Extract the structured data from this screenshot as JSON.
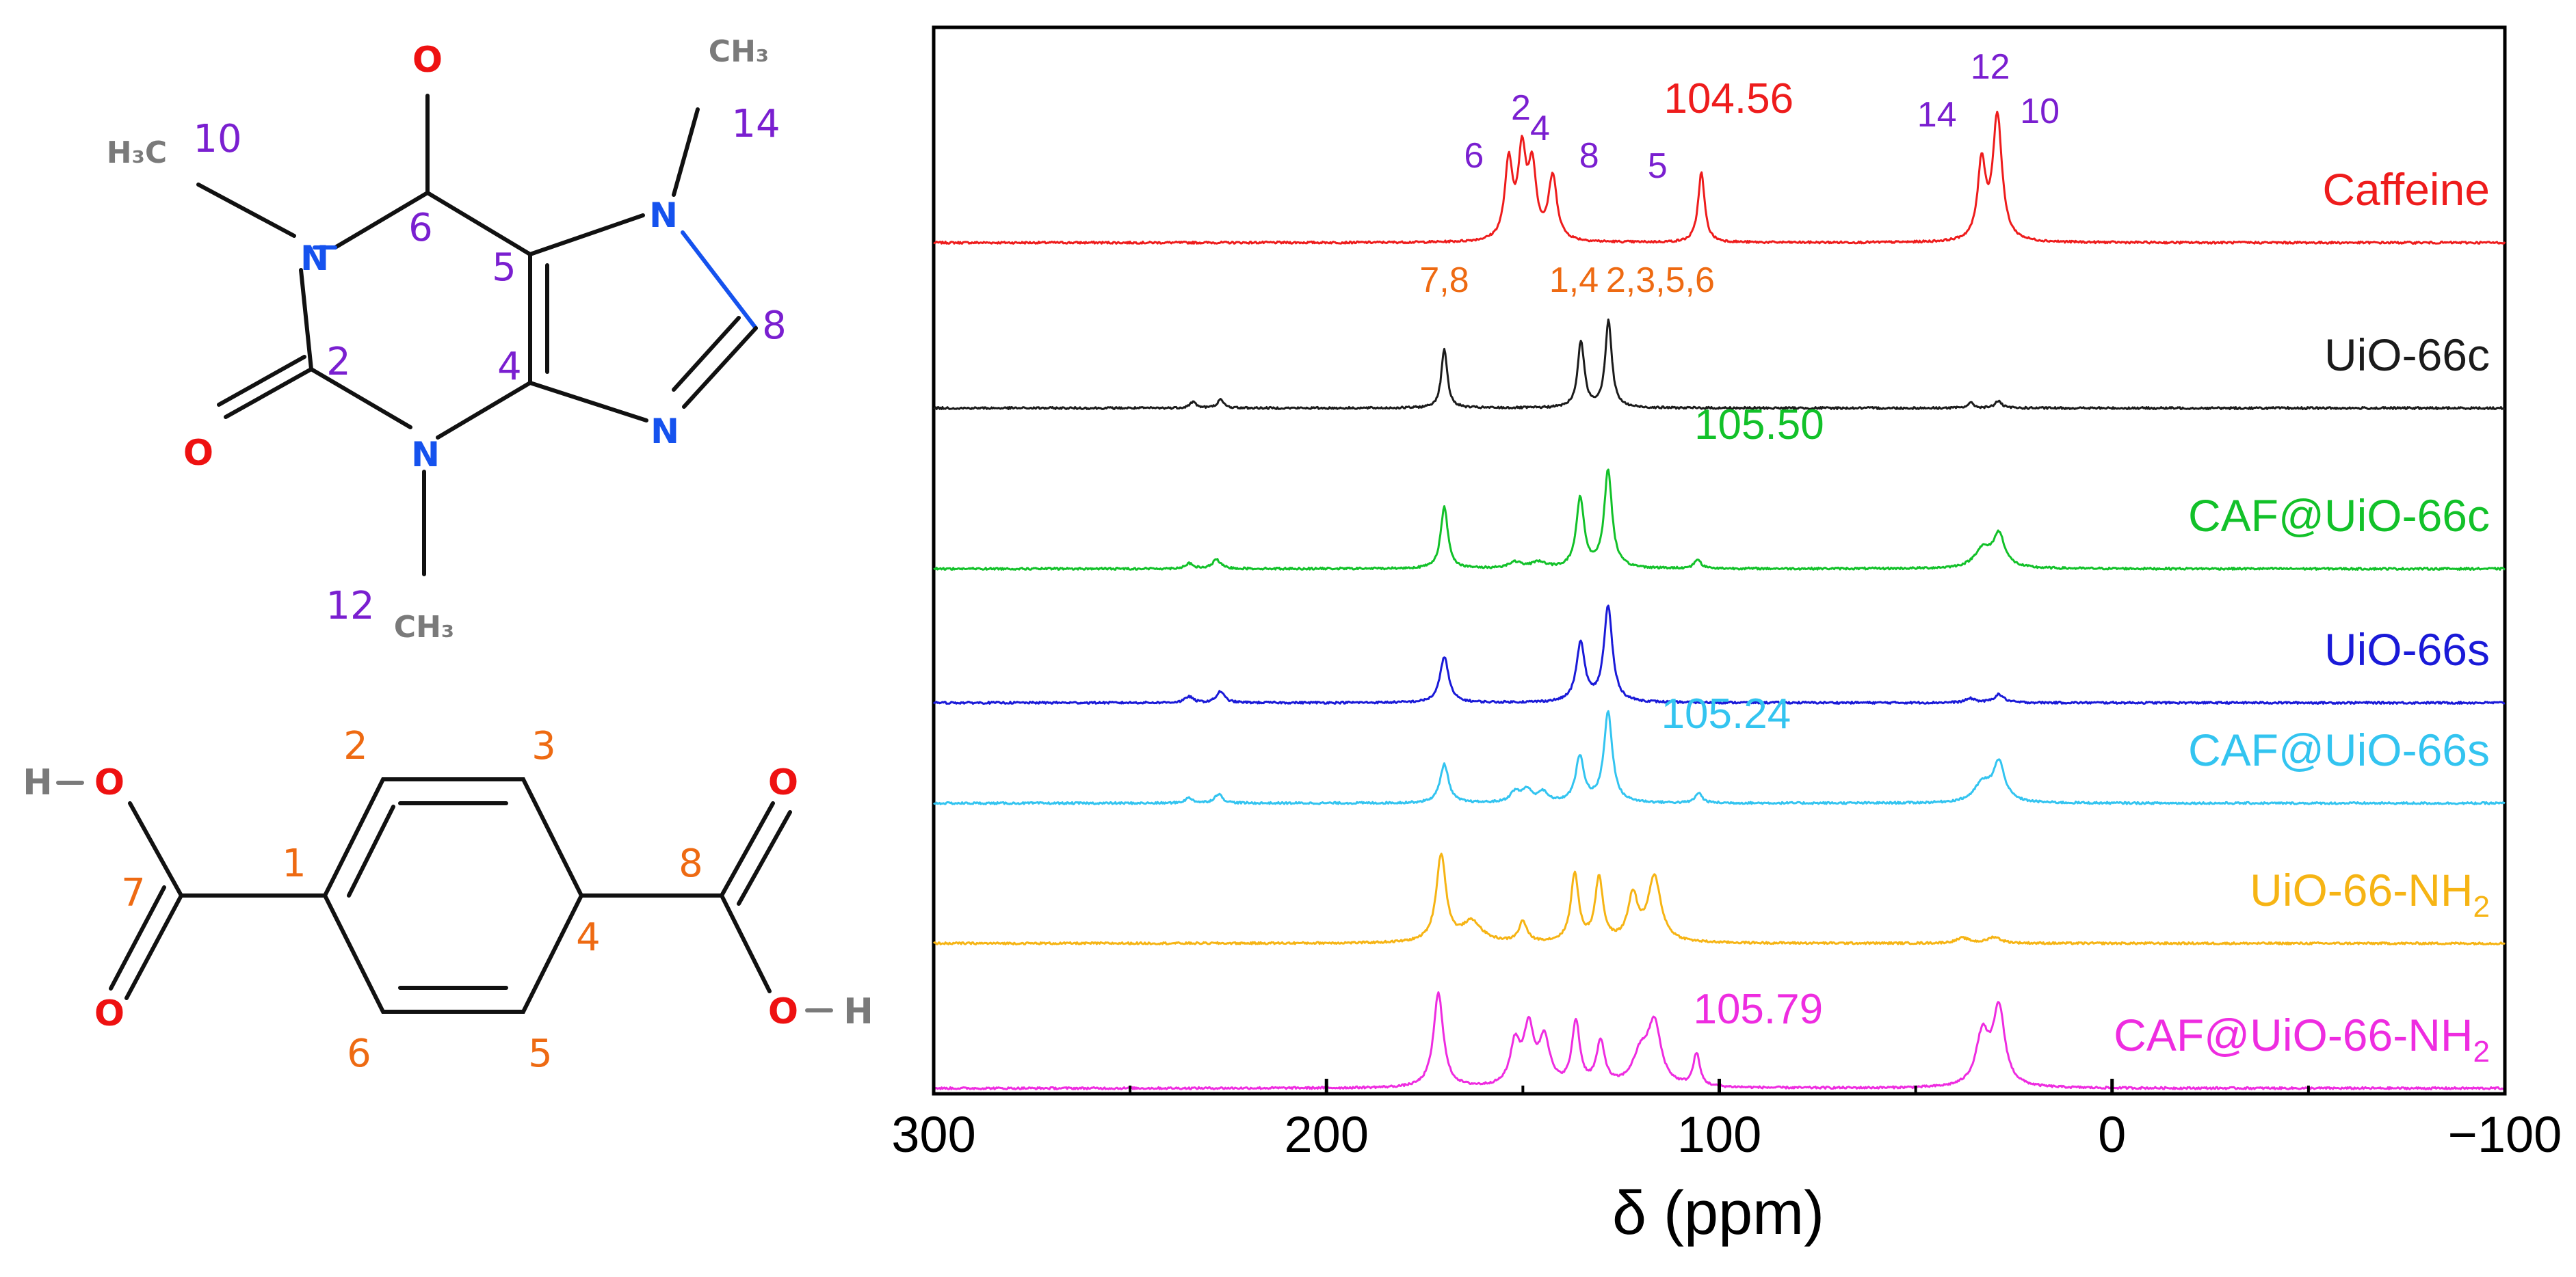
{
  "colors": {
    "oxygen": "#ee1111",
    "nitrogen": "#1552ee",
    "carbon_grey": "#7a7a7a",
    "caffeine_index": "#7a1fd0",
    "bdc_index": "#ee6a12",
    "bond": "#111111"
  },
  "caffeine_molecule": {
    "atoms": {
      "o6": "O",
      "o2": "O",
      "n1": "N",
      "n3": "N",
      "n7": "N",
      "n9": "N",
      "ch3_10": "H₃C",
      "ch3_12": "CH₃",
      "ch3_14": "CH₃"
    },
    "positions": {
      "p10": "10",
      "p6": "6",
      "p2": "2",
      "p5": "5",
      "p4": "4",
      "p8": "8",
      "p12": "12",
      "p14": "14"
    }
  },
  "bdc_molecule": {
    "atoms": {
      "h_left": "H",
      "o_left_top": "O",
      "o_left_bottom": "O",
      "o_right_top": "O",
      "o_right_bottom": "O",
      "h_right": "H"
    },
    "positions": {
      "p1": "1",
      "p2": "2",
      "p3": "3",
      "p4": "4",
      "p5": "5",
      "p6": "6",
      "p7": "7",
      "p8": "8"
    }
  },
  "chart_data": {
    "type": "line",
    "title": "",
    "xlabel": "δ (ppm)",
    "ylabel": "",
    "xlim": [
      300,
      -100
    ],
    "x_reversed": true,
    "xticks": [
      300,
      200,
      100,
      0,
      -100
    ],
    "xtick_labels": [
      "300",
      "200",
      "100",
      "0",
      "−100"
    ],
    "grid": false,
    "series": [
      {
        "name": "Caffeine",
        "color": "#ee1c1c",
        "baseline_index": 0,
        "peaks": [
          [
            153.6,
            0.75,
            1.2
          ],
          [
            150.2,
            0.82,
            1.2
          ],
          [
            147.6,
            0.68,
            1.2
          ],
          [
            142.4,
            0.62,
            1.3
          ],
          [
            104.56,
            0.68,
            1.0
          ],
          [
            33.2,
            0.75,
            1.2
          ],
          [
            29.2,
            1.22,
            1.4
          ]
        ],
        "annotations": [
          {
            "text": "6",
            "x": 155.5,
            "kind": "index"
          },
          {
            "text": "2",
            "x": 150.5,
            "kind": "index"
          },
          {
            "text": "4",
            "x": 146.5,
            "kind": "index"
          },
          {
            "text": "8",
            "x": 137.5,
            "kind": "index"
          },
          {
            "text": "5",
            "x": 110.5,
            "kind": "index"
          },
          {
            "text": "104.56",
            "x": 104.56,
            "kind": "value"
          },
          {
            "text": "14",
            "x": 38.5,
            "kind": "index"
          },
          {
            "text": "12",
            "x": 31.0,
            "kind": "index"
          },
          {
            "text": "10",
            "x": 24.5,
            "kind": "index"
          }
        ]
      },
      {
        "name": "UiO-66c",
        "color": "#1b1b1b",
        "baseline_index": 1,
        "peaks": [
          [
            234.0,
            0.06,
            1.0
          ],
          [
            227.0,
            0.08,
            1.0
          ],
          [
            170.0,
            0.58,
            0.9
          ],
          [
            135.2,
            0.65,
            1.0
          ],
          [
            128.2,
            0.85,
            1.0
          ],
          [
            36.0,
            0.05,
            1.0
          ],
          [
            29.0,
            0.07,
            1.0
          ]
        ],
        "annotations": [
          {
            "text": "7,8",
            "x": 170.0,
            "kind": "ref"
          },
          {
            "text": "1,4",
            "x": 137.0,
            "kind": "ref"
          },
          {
            "text": "2,3,5,6",
            "x": 115.0,
            "kind": "ref"
          }
        ]
      },
      {
        "name": "CAF@UiO-66c",
        "color": "#12c129",
        "baseline_index": 2,
        "peaks": [
          [
            235.0,
            0.05,
            1.2
          ],
          [
            228.0,
            0.09,
            1.2
          ],
          [
            170.0,
            0.6,
            1.1
          ],
          [
            152.0,
            0.06,
            2.0
          ],
          [
            146.0,
            0.06,
            2.0
          ],
          [
            135.4,
            0.68,
            1.2
          ],
          [
            128.3,
            0.95,
            1.2
          ],
          [
            105.5,
            0.09,
            1.0
          ],
          [
            33.0,
            0.18,
            2.5
          ],
          [
            28.8,
            0.32,
            1.8
          ]
        ],
        "annotations": [
          {
            "text": "105.50",
            "x": 105.5,
            "kind": "value"
          }
        ]
      },
      {
        "name": "UiO-66s",
        "color": "#1a1ad8",
        "baseline_index": 3,
        "peaks": [
          [
            235.0,
            0.06,
            1.2
          ],
          [
            227.0,
            0.11,
            1.2
          ],
          [
            170.0,
            0.45,
            1.3
          ],
          [
            135.3,
            0.57,
            1.3
          ],
          [
            128.3,
            0.93,
            1.3
          ],
          [
            36.0,
            0.04,
            1.5
          ],
          [
            28.8,
            0.08,
            1.5
          ]
        ],
        "annotations": []
      },
      {
        "name": "CAF@UiO-66s",
        "color": "#33c4f0",
        "baseline_index": 4,
        "peaks": [
          [
            235.0,
            0.05,
            1.2
          ],
          [
            227.5,
            0.09,
            1.2
          ],
          [
            170.0,
            0.38,
            1.3
          ],
          [
            152.0,
            0.1,
            1.5
          ],
          [
            149.0,
            0.12,
            1.5
          ],
          [
            145.0,
            0.1,
            1.5
          ],
          [
            135.5,
            0.44,
            1.3
          ],
          [
            128.3,
            0.88,
            1.3
          ],
          [
            105.24,
            0.1,
            1.0
          ],
          [
            33.0,
            0.18,
            2.5
          ],
          [
            28.8,
            0.38,
            1.8
          ]
        ],
        "annotations": [
          {
            "text": "105.24",
            "x": 105.24,
            "kind": "value"
          }
        ]
      },
      {
        "name": "UiO-66-NH₂",
        "label_main": "UiO-66-NH",
        "label_sub": "2",
        "color": "#f6b414",
        "baseline_index": 5,
        "peaks": [
          [
            170.8,
            0.85,
            1.5
          ],
          [
            163.0,
            0.2,
            3.0
          ],
          [
            150.0,
            0.2,
            1.2
          ],
          [
            136.8,
            0.66,
            1.2
          ],
          [
            130.6,
            0.62,
            1.2
          ],
          [
            122.0,
            0.44,
            1.5
          ],
          [
            116.5,
            0.63,
            2.0
          ],
          [
            38.0,
            0.05,
            2.0
          ],
          [
            30.0,
            0.06,
            2.0
          ]
        ],
        "annotations": []
      },
      {
        "name": "CAF@UiO-66-NH₂",
        "label_main": "CAF@UiO-66-NH",
        "label_sub": "2",
        "color": "#ee2ce0",
        "baseline_index": 6,
        "peaks": [
          [
            171.5,
            0.92,
            1.5
          ],
          [
            152.0,
            0.4,
            1.5
          ],
          [
            148.5,
            0.55,
            1.6
          ],
          [
            144.5,
            0.45,
            1.6
          ],
          [
            136.5,
            0.62,
            1.2
          ],
          [
            130.2,
            0.42,
            1.3
          ],
          [
            120.0,
            0.3,
            2.5
          ],
          [
            116.5,
            0.58,
            2.0
          ],
          [
            105.79,
            0.32,
            1.0
          ],
          [
            33.0,
            0.5,
            2.0
          ],
          [
            28.8,
            0.75,
            1.8
          ]
        ],
        "annotations": [
          {
            "text": "105.79",
            "x": 105.79,
            "kind": "value"
          }
        ]
      }
    ]
  }
}
